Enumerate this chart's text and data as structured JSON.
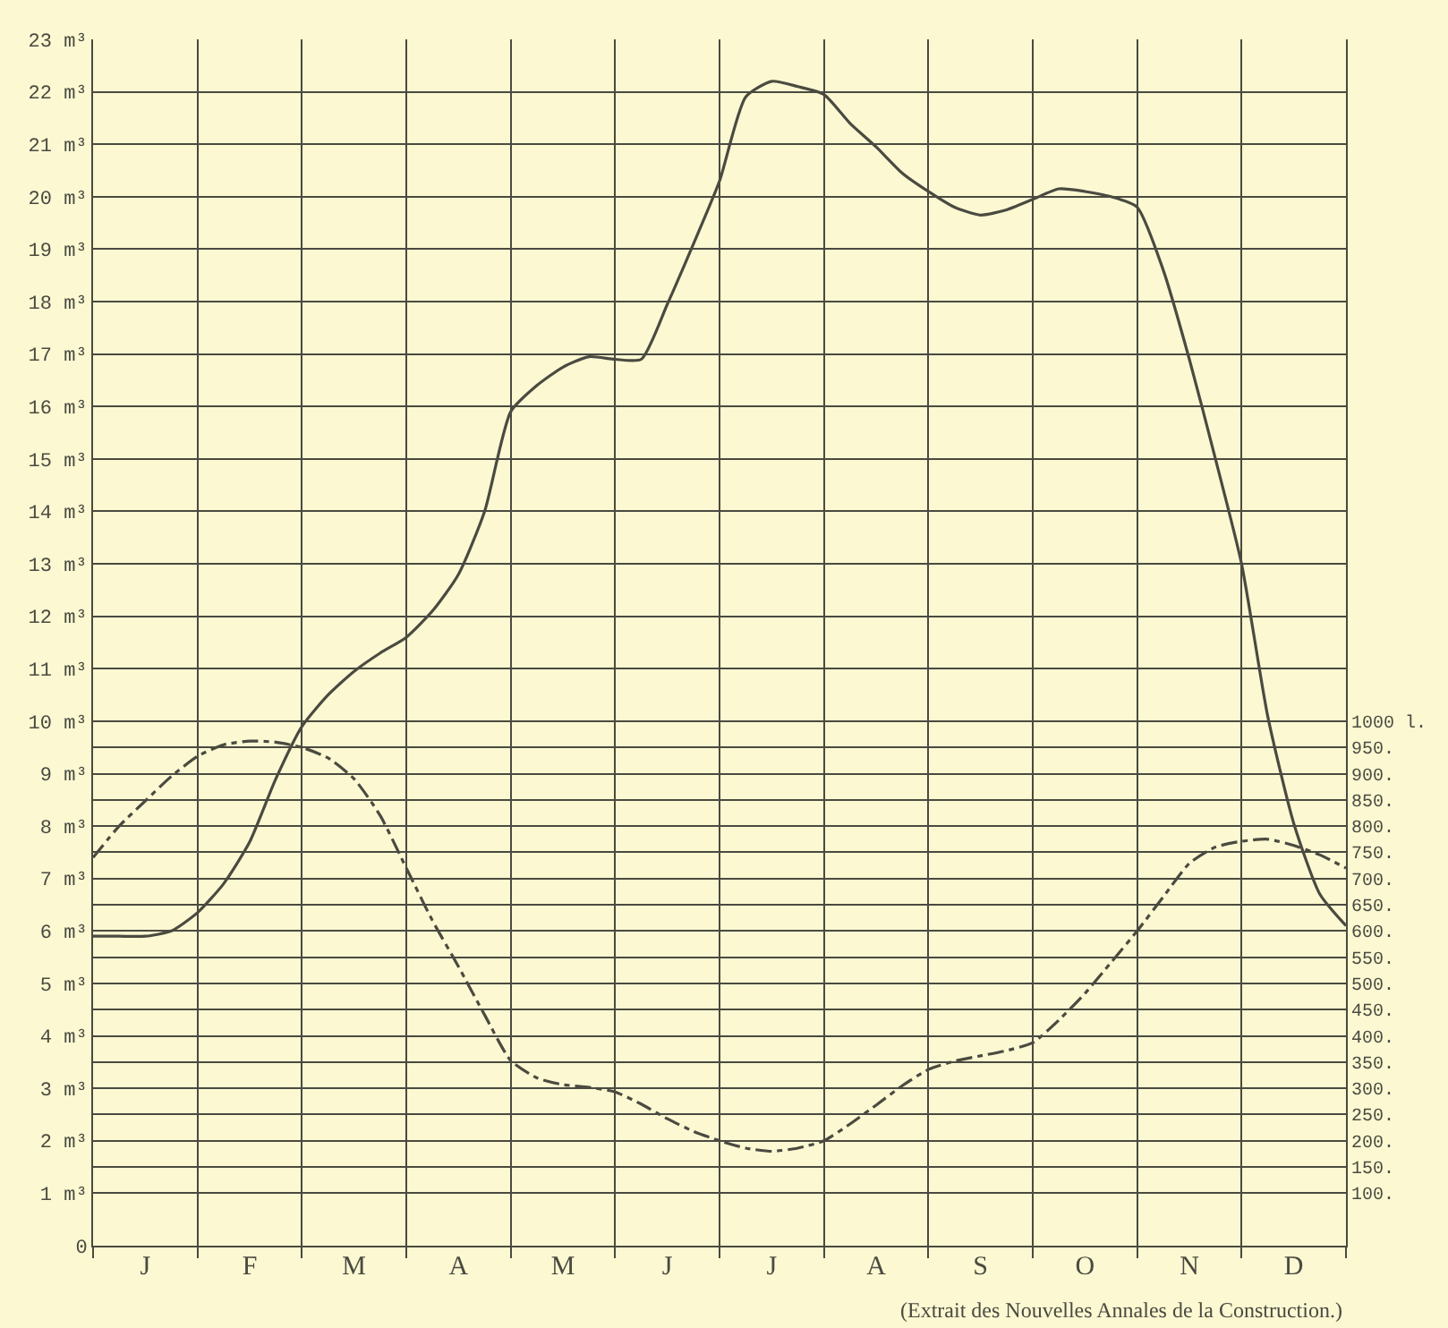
{
  "chart_data": {
    "type": "line",
    "categories": [
      null,
      null,
      "J",
      null,
      null,
      null,
      "F",
      null,
      null,
      null,
      "M",
      null,
      null,
      null,
      "A",
      null,
      null,
      null,
      "M",
      null,
      null,
      null,
      "J",
      null,
      null,
      null,
      "J",
      null,
      null,
      null,
      "A",
      null,
      null,
      null,
      "S",
      null,
      null,
      null,
      "O",
      null,
      null,
      null,
      "N",
      null,
      null,
      null,
      "D",
      null,
      null
    ],
    "series": [
      {
        "color": "#4a4a40",
        "line_style": "solid",
        "values": [
          5.9,
          5.9,
          5.9,
          6.0,
          6.35,
          6.9,
          7.7,
          8.9,
          9.9,
          10.5,
          10.95,
          11.3,
          11.6,
          12.1,
          12.8,
          14.0,
          15.9,
          16.4,
          16.75,
          16.95,
          16.9,
          16.9,
          17.95,
          19.1,
          20.3,
          21.9,
          22.2,
          22.1,
          21.95,
          21.4,
          20.95,
          20.45,
          20.1,
          19.8,
          19.65,
          19.75,
          19.95,
          20.15,
          20.1,
          20.0,
          19.8,
          18.6,
          16.9,
          15.0,
          13.0,
          10.1,
          8.05,
          6.7,
          6.1
        ]
      },
      {
        "color": "#4a4a40",
        "line_style": "dashdot",
        "axis": "y2",
        "values": [
          740,
          800,
          848,
          895,
          933,
          955,
          962,
          960,
          950,
          930,
          890,
          820,
          720,
          620,
          532,
          440,
          353,
          320,
          307,
          302,
          293,
          270,
          242,
          218,
          200,
          186,
          180,
          186,
          200,
          232,
          268,
          305,
          336,
          352,
          362,
          372,
          387,
          430,
          481,
          540,
          600,
          665,
          729,
          760,
          771,
          775,
          763,
          745,
          720
        ]
      }
    ],
    "ylim": [
      0,
      23
    ],
    "yticks": [
      0,
      {
        "value": 1,
        "label": "1 m³"
      },
      {
        "value": 2,
        "label": "2 m³"
      },
      {
        "value": 3,
        "label": "3 m³"
      },
      {
        "value": 4,
        "label": "4 m³"
      },
      {
        "value": 5,
        "label": "5 m³"
      },
      {
        "value": 6,
        "label": "6 m³"
      },
      {
        "value": 7,
        "label": "7 m³"
      },
      {
        "value": 8,
        "label": "8 m³"
      },
      {
        "value": 9,
        "label": "9 m³"
      },
      {
        "value": 10,
        "label": "10 m³"
      },
      {
        "value": 11,
        "label": "11 m³"
      },
      {
        "value": 12,
        "label": "12 m³"
      },
      {
        "value": 13,
        "label": "13 m³"
      },
      {
        "value": 14,
        "label": "14 m³"
      },
      {
        "value": 15,
        "label": "15 m³"
      },
      {
        "value": 16,
        "label": "16 m³"
      },
      {
        "value": 17,
        "label": "17 m³"
      },
      {
        "value": 18,
        "label": "18 m³"
      },
      {
        "value": 19,
        "label": "19 m³"
      },
      {
        "value": 20,
        "label": "20 m³"
      },
      {
        "value": 21,
        "label": "21 m³"
      },
      {
        "value": 22,
        "label": "22 m³"
      },
      {
        "value": 23,
        "label": "23 m³"
      }
    ],
    "y2lim": [
      0,
      2300
    ],
    "y2ticks": [
      {
        "value": 100,
        "label": "100."
      },
      {
        "value": 150,
        "label": "150."
      },
      {
        "value": 200,
        "label": "200."
      },
      {
        "value": 250,
        "label": "250."
      },
      {
        "value": 300,
        "label": "300."
      },
      {
        "value": 350,
        "label": "350."
      },
      {
        "value": 400,
        "label": "400."
      },
      {
        "value": 450,
        "label": "450."
      },
      {
        "value": 500,
        "label": "500."
      },
      {
        "value": 550,
        "label": "550."
      },
      {
        "value": 600,
        "label": "600."
      },
      {
        "value": 650,
        "label": "650."
      },
      {
        "value": 700,
        "label": "700."
      },
      {
        "value": 750,
        "label": "750."
      },
      {
        "value": 800,
        "label": "800."
      },
      {
        "value": 850,
        "label": "850."
      },
      {
        "value": 900,
        "label": "900."
      },
      {
        "value": 950,
        "label": "950."
      },
      {
        "value": 1000,
        "label": "1000 l."
      }
    ],
    "grid": true,
    "marker": "none",
    "annotations": [
      "(Extrait des Nouvelles Annales de la Construction.)"
    ]
  }
}
